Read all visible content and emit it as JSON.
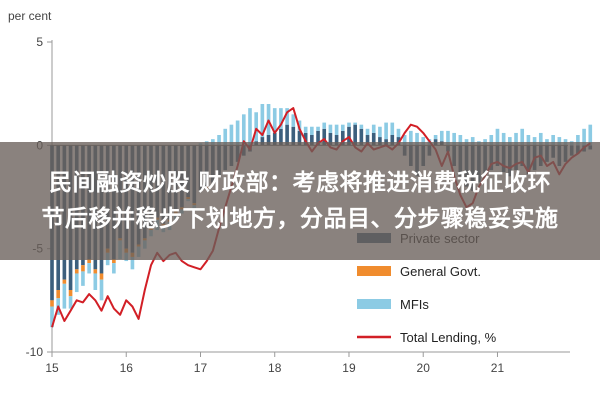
{
  "chart_data": {
    "type": "bar",
    "ylabel": "per cent",
    "ylim": [
      -10,
      5
    ],
    "yticks": [
      "5",
      "0",
      "-5",
      "-10"
    ],
    "xticks": [
      "15",
      "16",
      "17",
      "18",
      "19",
      "20",
      "21"
    ],
    "x_start_year": 2015,
    "x_end_year": 2021.95,
    "legend": {
      "position": "bottom-right",
      "entries": [
        {
          "label": "Private sector",
          "color": "#3c5f7d",
          "kind": "bar"
        },
        {
          "label": "General Govt.",
          "color": "#f08c2e",
          "kind": "bar"
        },
        {
          "label": "MFIs",
          "color": "#8ccbe4",
          "kind": "bar"
        },
        {
          "label": "Total Lending, %",
          "color": "#d21f26",
          "kind": "line"
        }
      ]
    },
    "series": [
      {
        "name": "Private sector",
        "values": [
          -7.5,
          -7.0,
          -6.5,
          -7.0,
          -6.0,
          -5.8,
          -5.5,
          -6.0,
          -6.2,
          -5.0,
          -5.5,
          -4.5,
          -5.0,
          -5.2,
          -4.8,
          -4.5,
          -4.0,
          -3.5,
          -3.8,
          -3.6,
          -3.2,
          -3.0,
          -2.5,
          -2.8,
          -2.2,
          -2.0,
          -1.8,
          -1.5,
          -1.2,
          -1.0,
          -0.8,
          -0.5,
          -0.3,
          0.2,
          0.4,
          0.5,
          0.6,
          0.8,
          1.0,
          0.9,
          0.7,
          0.6,
          0.5,
          0.7,
          0.8,
          0.6,
          0.5,
          0.7,
          0.9,
          1.0,
          0.8,
          0.5,
          0.6,
          0.4,
          0.3,
          0.5,
          0.4,
          -0.5,
          -1.0,
          -1.5,
          -1.0,
          -0.5,
          0.3,
          0.2,
          -0.3,
          -1.0,
          -1.5,
          -2.0,
          -2.2,
          -1.8,
          -1.5,
          -1.2,
          -1.0,
          -1.3,
          -1.5,
          -1.2,
          -1.0,
          -1.4,
          -1.2,
          -1.0,
          -0.8,
          -0.6,
          -1.0,
          -0.8,
          -0.5,
          -0.4,
          -0.3,
          -0.2
        ]
      },
      {
        "name": "General Govt.",
        "values": [
          -0.3,
          -0.4,
          -0.2,
          -0.3,
          -0.2,
          -0.3,
          -0.2,
          -0.2,
          -0.3,
          -0.2,
          -0.2,
          -0.1,
          -0.2,
          -0.2,
          -0.1,
          -0.1,
          -0.1,
          -0.1,
          -0.2,
          -0.1,
          -0.1,
          -0.1,
          -0.1,
          -0.1,
          0,
          -0.1,
          0,
          0,
          0,
          0,
          0,
          0,
          0,
          0,
          0,
          0,
          0,
          0,
          0,
          0,
          0,
          0,
          0,
          0,
          0,
          0,
          0,
          0,
          0,
          0,
          0,
          0,
          0,
          0,
          0,
          0,
          0,
          0,
          0,
          0,
          0,
          0,
          0,
          0,
          0,
          0,
          0,
          0,
          0,
          0,
          0,
          0,
          0,
          0,
          0,
          0,
          0,
          0,
          0,
          0,
          0,
          0,
          0,
          0,
          0,
          0,
          0,
          0
        ]
      },
      {
        "name": "MFIs",
        "values": [
          -1.0,
          -0.8,
          -1.2,
          -0.6,
          -0.9,
          -0.7,
          -0.5,
          -0.8,
          -1.0,
          -0.6,
          -0.5,
          -0.9,
          -0.4,
          -0.6,
          -0.5,
          -0.4,
          -0.3,
          -0.5,
          -0.2,
          -0.4,
          -0.3,
          -0.2,
          -0.1,
          -0.2,
          0.1,
          0.2,
          0.3,
          0.5,
          0.8,
          1.0,
          1.2,
          1.5,
          1.8,
          1.4,
          1.6,
          1.5,
          1.2,
          1.0,
          0.8,
          0.6,
          0.5,
          0.3,
          0.4,
          0.2,
          0.3,
          0.4,
          0.5,
          0.3,
          0.2,
          0.1,
          0.2,
          0.3,
          0.4,
          0.5,
          0.8,
          0.6,
          0.4,
          0.5,
          0.7,
          0.6,
          0.4,
          0.3,
          0.2,
          0.5,
          0.7,
          0.6,
          0.5,
          0.3,
          0.4,
          0.2,
          0.3,
          0.5,
          0.8,
          0.6,
          0.4,
          0.6,
          0.8,
          0.5,
          0.4,
          0.6,
          0.3,
          0.5,
          0.4,
          0.3,
          0.2,
          0.5,
          0.8,
          1.0
        ]
      }
    ],
    "line": {
      "name": "Total Lending, %",
      "values": [
        -8.8,
        -7.8,
        -8.5,
        -8.0,
        -7.5,
        -7.6,
        -7.2,
        -7.5,
        -8.0,
        -7.3,
        -7.9,
        -8.2,
        -7.5,
        -7.8,
        -8.4,
        -7.0,
        -5.8,
        -5.2,
        -5.6,
        -5.3,
        -5.2,
        -5.6,
        -5.8,
        -5.9,
        -6.0,
        -5.6,
        -5.1,
        -4.0,
        -3.0,
        -2.0,
        -1.0,
        0.2,
        -0.2,
        0.8,
        0.5,
        1.2,
        0.6,
        1.0,
        1.6,
        1.8,
        0.8,
        0.2,
        -0.3,
        0.1,
        0.3,
        -0.1,
        -0.2,
        0.2,
        0.4,
        -0.1,
        -0.3,
        0.1,
        -0.2,
        -0.1,
        0.0,
        -0.2,
        0.1,
        0.6,
        1.0,
        0.9,
        0.6,
        0.2,
        -0.2,
        -1.0,
        -0.3,
        -1.5,
        -2.4,
        -3.0,
        -2.8,
        -2.0,
        -1.5,
        -0.9,
        -0.8,
        -1.0,
        -1.1,
        -0.9,
        -0.8,
        -1.3,
        -0.6,
        -0.5,
        -1.0,
        -0.8,
        -1.4,
        -0.9,
        -0.6,
        -0.4,
        -0.1,
        0.1
      ]
    }
  },
  "banner": {
    "line1": "民间融资炒股 财政部：考虑将推进消费税征收环",
    "line2": "节后移并稳步下划地方，分品目、分步骤稳妥实施"
  }
}
